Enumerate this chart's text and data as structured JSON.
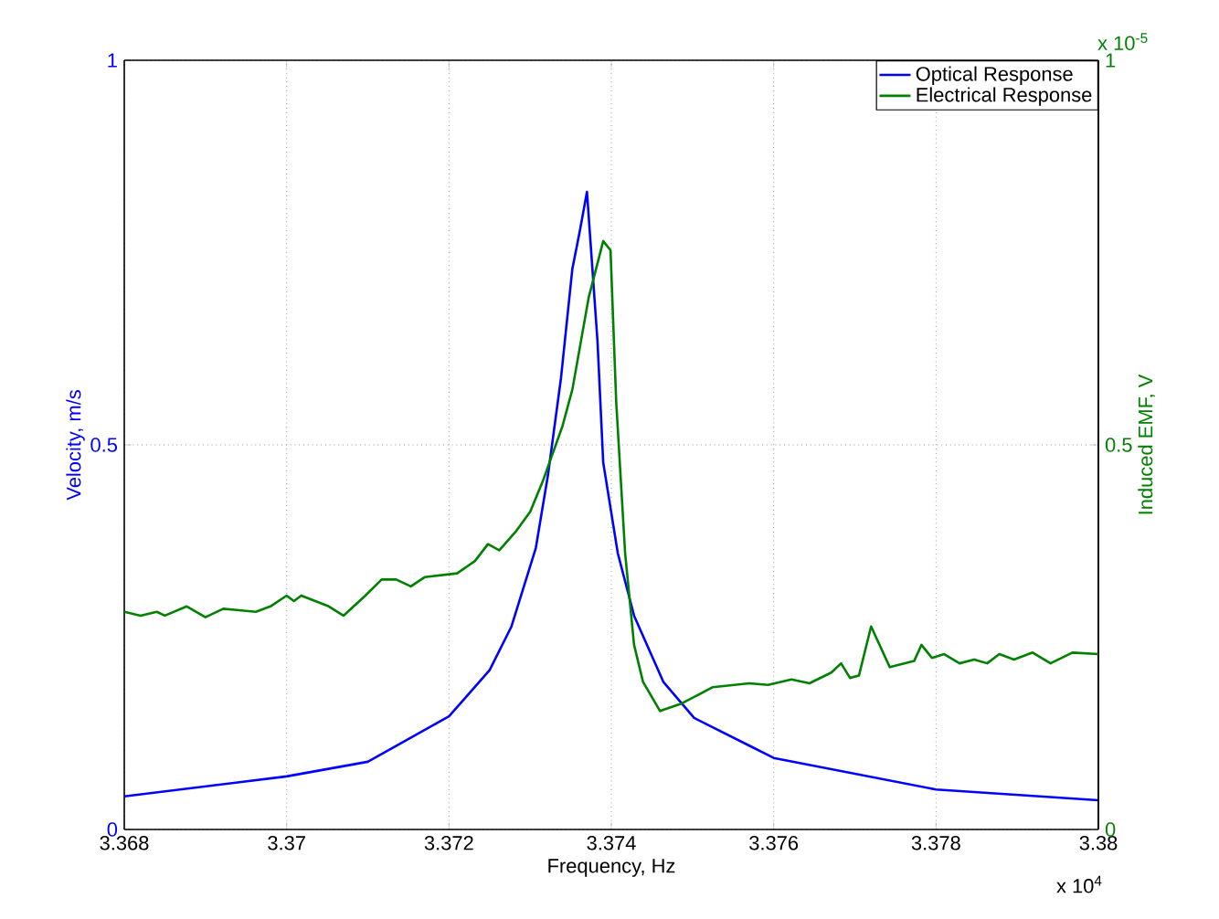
{
  "chart_data": {
    "type": "line",
    "xlabel": "Frequency, Hz",
    "ylabel": "Velocity, m/s",
    "y2label": "Induced EMF, V",
    "xlim": [
      3.368,
      3.38
    ],
    "xticks": [
      3.368,
      3.37,
      3.372,
      3.374,
      3.376,
      3.378,
      3.38
    ],
    "ylim": [
      0,
      1
    ],
    "yticks": [
      0,
      0.5,
      1
    ],
    "y2lim": [
      0,
      1
    ],
    "y2ticks": [
      0,
      0.5,
      1
    ],
    "grid": true,
    "legend": "top right",
    "annotations": [
      "x 10$^{4}$",
      "x 10$^{-5}$"
    ],
    "series": [
      {
        "name": "Optical Response",
        "color": "#0000ff",
        "x": [
          3.368,
          3.37,
          3.371,
          3.372,
          3.3725,
          3.37277,
          3.37307,
          3.37322,
          3.37338,
          3.37352,
          3.37361,
          3.3737,
          3.37383,
          3.3739,
          3.37408,
          3.37428,
          3.37464,
          3.37502,
          3.3757,
          3.376,
          3.378,
          3.38
        ],
        "values": [
          0.043,
          0.069,
          0.088,
          0.147,
          0.207,
          0.264,
          0.366,
          0.461,
          0.587,
          0.729,
          0.777,
          0.829,
          0.634,
          0.477,
          0.359,
          0.278,
          0.192,
          0.145,
          0.109,
          0.093,
          0.052,
          0.038
        ]
      },
      {
        "name": "Electrical Response",
        "color": "#008000",
        "axis": "y2",
        "x": [
          3.368,
          3.3682,
          3.3684,
          3.3685,
          3.36877,
          3.369,
          3.36922,
          3.36962,
          3.3698,
          3.37,
          3.37009,
          3.37018,
          3.37052,
          3.3707,
          3.37097,
          3.37117,
          3.37135,
          3.37153,
          3.3717,
          3.3721,
          3.37232,
          3.37248,
          3.37262,
          3.37282,
          3.373,
          3.37316,
          3.3734,
          3.37352,
          3.37372,
          3.3739,
          3.37399,
          3.37406,
          3.37417,
          3.37428,
          3.37439,
          3.3746,
          3.37487,
          3.37525,
          3.3757,
          3.37593,
          3.37622,
          3.37644,
          3.37671,
          3.37683,
          3.37694,
          3.37705,
          3.3772,
          3.37743,
          3.37773,
          3.37782,
          3.37795,
          3.3781,
          3.37829,
          3.37847,
          3.37863,
          3.37878,
          3.37896,
          3.37919,
          3.37941,
          3.37968,
          3.38
        ],
        "values": [
          0.283,
          0.278,
          0.283,
          0.278,
          0.29,
          0.276,
          0.287,
          0.283,
          0.29,
          0.304,
          0.297,
          0.304,
          0.29,
          0.278,
          0.304,
          0.325,
          0.325,
          0.316,
          0.328,
          0.333,
          0.349,
          0.371,
          0.363,
          0.387,
          0.413,
          0.454,
          0.525,
          0.572,
          0.691,
          0.765,
          0.753,
          0.556,
          0.359,
          0.24,
          0.192,
          0.154,
          0.164,
          0.185,
          0.19,
          0.188,
          0.195,
          0.19,
          0.204,
          0.216,
          0.197,
          0.2,
          0.264,
          0.211,
          0.219,
          0.24,
          0.223,
          0.228,
          0.216,
          0.221,
          0.216,
          0.228,
          0.221,
          0.23,
          0.216,
          0.23,
          0.228
        ]
      }
    ]
  }
}
